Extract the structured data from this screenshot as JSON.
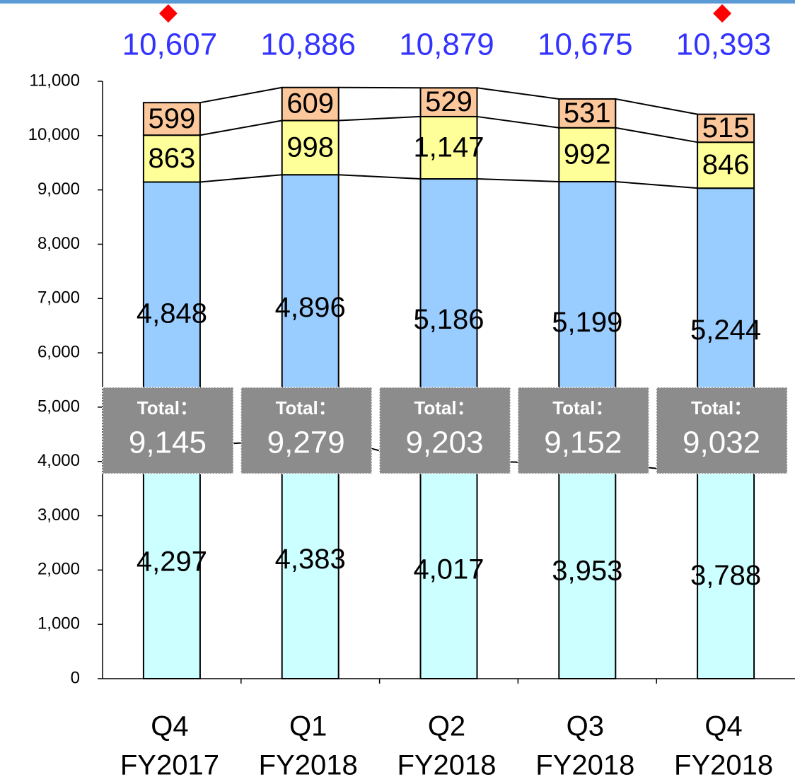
{
  "chart_data": {
    "type": "stacked_bar",
    "categories": [
      [
        "Q4",
        "FY2017"
      ],
      [
        "Q1",
        "FY2018"
      ],
      [
        "Q2",
        "FY2018"
      ],
      [
        "Q3",
        "FY2018"
      ],
      [
        "Q4",
        "FY2018"
      ]
    ],
    "series": [
      {
        "color": "#ccffff",
        "values": [
          4297,
          4383,
          4017,
          3953,
          3788
        ],
        "value_labels": [
          "4,297",
          "4,383",
          "4,017",
          "3,953",
          "3,788"
        ]
      },
      {
        "color": "#99ccff",
        "values": [
          4848,
          4896,
          5186,
          5199,
          5244
        ],
        "value_labels": [
          "4,848",
          "4,896",
          "5,186",
          "5,199",
          "5,244"
        ]
      },
      {
        "color": "#ffff99",
        "values": [
          863,
          998,
          1147,
          992,
          846
        ],
        "value_labels": [
          "863",
          "998",
          "1,147",
          "992",
          "846"
        ]
      },
      {
        "color": "#fcc79a",
        "values": [
          599,
          609,
          529,
          531,
          515
        ],
        "value_labels": [
          "599",
          "609",
          "529",
          "531",
          "515"
        ]
      }
    ],
    "subtotals": {
      "label": "Total：",
      "values": [
        9145,
        9279,
        9203,
        9152,
        9032
      ],
      "value_labels": [
        "9,145",
        "9,279",
        "9,203",
        "9,152",
        "9,032"
      ],
      "color": "#8c8c8c"
    },
    "totals": {
      "values": [
        10607,
        10886,
        10879,
        10675,
        10393
      ],
      "value_labels": [
        "10,607",
        "10,886",
        "10,879",
        "10,675",
        "10,393"
      ],
      "color": "#3333ff"
    },
    "highlighted": [
      true,
      false,
      false,
      false,
      true
    ],
    "highlight_color": "#ff0000",
    "ylim": [
      0,
      11000
    ],
    "yticks": [
      0,
      {
        "value": 1000,
        "label": "1,000"
      },
      {
        "value": 2000,
        "label": "2,000"
      },
      {
        "value": 3000,
        "label": "3,000"
      },
      {
        "value": 4000,
        "label": "4,000"
      },
      {
        "value": 5000,
        "label": "5,000"
      },
      {
        "value": 6000,
        "label": "6,000"
      },
      {
        "value": 7000,
        "label": "7,000"
      },
      {
        "value": 8000,
        "label": "8,000"
      },
      {
        "value": 9000,
        "label": "9,000"
      },
      {
        "value": 10000,
        "label": "10,000"
      },
      {
        "value": 11000,
        "label": "11,000"
      }
    ]
  }
}
